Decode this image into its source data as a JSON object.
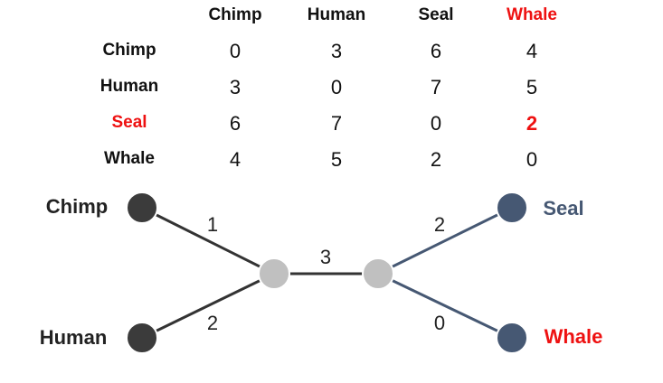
{
  "matrix": {
    "columns": [
      "Chimp",
      "Human",
      "Seal",
      "Whale"
    ],
    "rows": [
      {
        "label": "Chimp",
        "values": [
          "0",
          "3",
          "6",
          "4"
        ]
      },
      {
        "label": "Human",
        "values": [
          "3",
          "0",
          "7",
          "5"
        ]
      },
      {
        "label": "Seal",
        "values": [
          "6",
          "7",
          "0",
          "2"
        ]
      },
      {
        "label": "Whale",
        "values": [
          "4",
          "5",
          "2",
          "0"
        ]
      }
    ],
    "highlight_color": "#ee1111"
  },
  "tree": {
    "leaves": {
      "chimp": "Chimp",
      "human": "Human",
      "seal": "Seal",
      "whale": "Whale"
    },
    "edge_labels": {
      "chimp_to_left_internal": "1",
      "human_to_left_internal": "2",
      "internal_link": "3",
      "seal_to_right_internal": "2",
      "whale_to_right_internal": "0"
    },
    "colors": {
      "left_node": "#3b3b3b",
      "right_node": "#465873",
      "internal_node": "#c0c0c0",
      "left_edge": "#333333",
      "right_edge": "#465873",
      "highlight": "#ee1111"
    }
  }
}
